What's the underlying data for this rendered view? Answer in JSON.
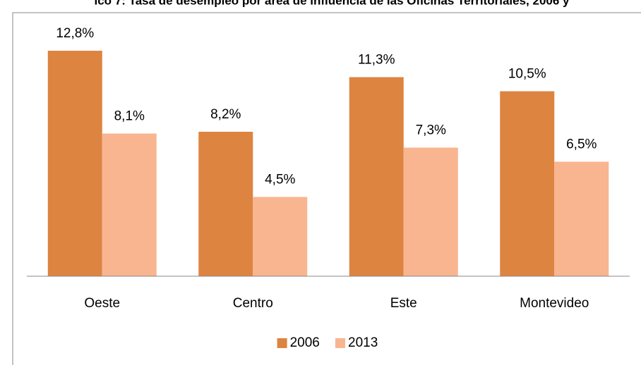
{
  "chart_data": {
    "type": "bar",
    "title": "ico 7: Tasa de desempleo por área de influencia de las Oficinas Territoriales, 2006 y",
    "categories": [
      "Oeste",
      "Centro",
      "Este",
      "Montevideo"
    ],
    "series": [
      {
        "name": "2006",
        "color": "#dd8441",
        "values": [
          12.8,
          8.2,
          11.3,
          10.5
        ],
        "value_labels": [
          "12,8%",
          "8,2%",
          "11,3%",
          "10,5%"
        ]
      },
      {
        "name": "2013",
        "color": "#f8b58f",
        "values": [
          8.1,
          4.5,
          7.3,
          6.5
        ],
        "value_labels": [
          "8,1%",
          "4,5%",
          "7,3%",
          "6,5%"
        ]
      }
    ],
    "ylim": [
      0,
      14
    ],
    "legend": "bottom"
  }
}
